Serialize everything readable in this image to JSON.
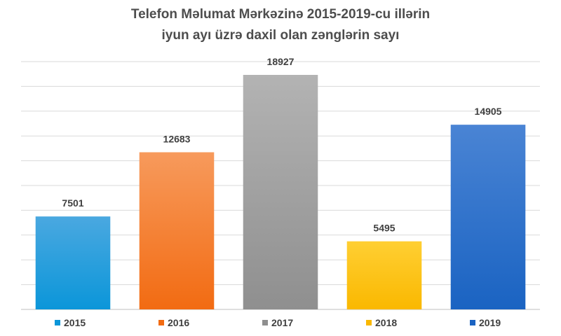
{
  "chart_data": {
    "type": "bar",
    "title_lines": [
      "Telefon Məlumat Mərkəzinə 2015-2019-cu illərin",
      "iyun ayı üzrə daxil olan zənglərin sayı"
    ],
    "categories": [
      "2015",
      "2016",
      "2017",
      "2018",
      "2019"
    ],
    "values": [
      7501,
      12683,
      18927,
      5495,
      14905
    ],
    "colors": [
      {
        "top": "#4aa8e0",
        "bottom": "#0b96d9"
      },
      {
        "top": "#f79a5c",
        "bottom": "#f26b12"
      },
      {
        "top": "#b3b3b3",
        "bottom": "#8f8f8f"
      },
      {
        "top": "#ffcf33",
        "bottom": "#fab800"
      },
      {
        "top": "#4a84d4",
        "bottom": "#1a63c2"
      }
    ],
    "legend": [
      "2015",
      "2016",
      "2017",
      "2018",
      "2019"
    ],
    "legend_position": "bottom",
    "ylim": [
      0,
      20000
    ],
    "grid": true,
    "xlabel": "",
    "ylabel": ""
  }
}
